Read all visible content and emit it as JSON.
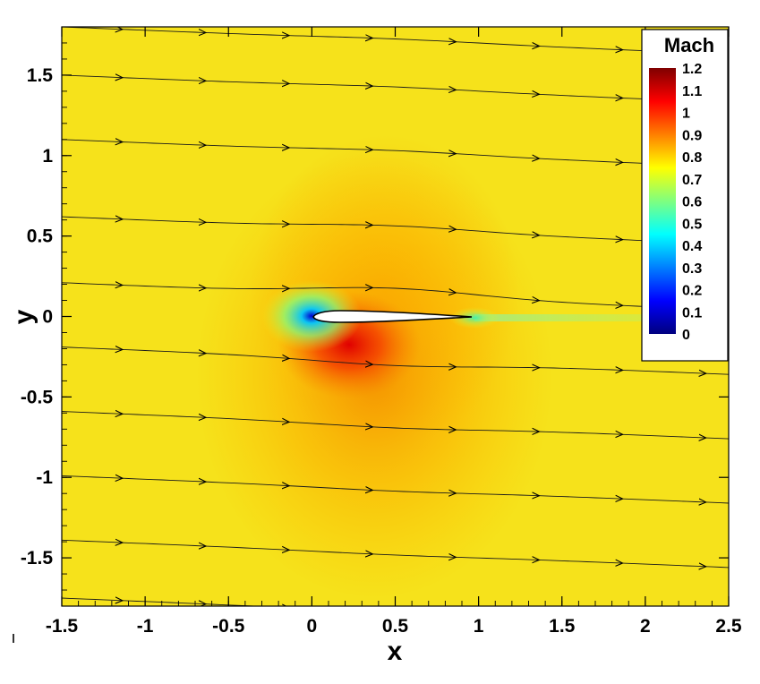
{
  "chart_data": {
    "type": "heatmap",
    "title": "",
    "xlabel": "x",
    "ylabel": "y",
    "xlim": [
      -1.5,
      2.5
    ],
    "ylim": [
      -1.8,
      1.8
    ],
    "x_ticks": [
      -1.5,
      -1,
      -0.5,
      0,
      0.5,
      1,
      1.5,
      2,
      2.5
    ],
    "y_ticks": [
      -1.5,
      -1,
      -0.5,
      0,
      0.5,
      1,
      1.5
    ],
    "x_tick_labels": [
      "-1.5",
      "-1",
      "-0.5",
      "0",
      "0.5",
      "1",
      "1.5",
      "2",
      "2.5"
    ],
    "y_tick_labels": [
      "-1.5",
      "-1",
      "-0.5",
      "0",
      "0.5",
      "1",
      "1.5"
    ],
    "colorbar": {
      "title": "Mach",
      "min": 0,
      "max": 1.2,
      "ticks": [
        1.2,
        1.1,
        1,
        0.9,
        0.8,
        0.7,
        0.6,
        0.5,
        0.4,
        0.3,
        0.2,
        0.1,
        0
      ],
      "tick_labels": [
        "1.2",
        "1.1",
        "1",
        "0.9",
        "0.8",
        "0.7",
        "0.6",
        "0.5",
        "0.4",
        "0.3",
        "0.2",
        "0.1",
        "0"
      ],
      "placement": "top-right",
      "colors": [
        "#00007f",
        "#0000ff",
        "#007fff",
        "#00ffff",
        "#7fff7f",
        "#ffff00",
        "#ff7f00",
        "#ff0000",
        "#7f0000"
      ]
    },
    "freestream_mach": 0.8,
    "airfoil": {
      "leading_edge_x": 0,
      "trailing_edge_x": 1,
      "chord": 1
    },
    "streamlines_start_y": [
      1.8,
      1.5,
      1.1,
      0.62,
      0.21,
      -0.19,
      -0.59,
      -0.99,
      -1.39,
      -1.75
    ],
    "streamlines_drop_over_domain": 0.17
  }
}
